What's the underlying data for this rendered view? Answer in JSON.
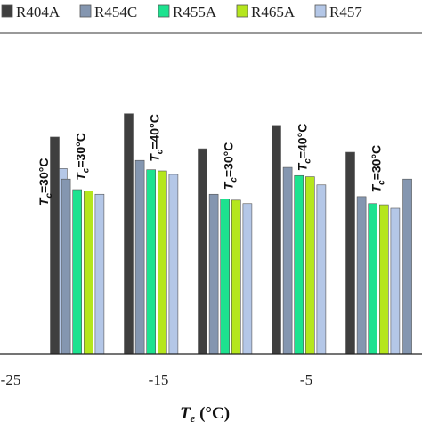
{
  "chart_data": {
    "type": "bar",
    "title": "",
    "xlabel_main": "T",
    "xlabel_sub": "e",
    "xlabel_unit": " (°C)",
    "ylabel": "",
    "ylim": [
      0,
      1.25
    ],
    "grid": false,
    "legend_position": "top",
    "series": [
      {
        "name": "R404A",
        "color": "#3f3f3f"
      },
      {
        "name": "R454C",
        "color": "#8496b0"
      },
      {
        "name": "R455A",
        "color": "#1de28f"
      },
      {
        "name": "R465A",
        "color": "#b5e61d"
      },
      {
        "name": "R457",
        "color": "#b4c7e7"
      }
    ],
    "x_ticks": [
      "-25",
      "-15",
      "-5"
    ],
    "groups": [
      {
        "x_position": -23.0,
        "annotation": "=30°C",
        "annotation_italic": "T",
        "annotation_sub": "c",
        "values": [
          null,
          null,
          null,
          null,
          0.795
        ]
      },
      {
        "x_position": -20.5,
        "annotation": "=30°C",
        "annotation_italic": "T",
        "annotation_sub": "c",
        "values": [
          0.93,
          0.75,
          0.705,
          0.7,
          0.685
        ]
      },
      {
        "x_position": -15.5,
        "annotation": "=40°C",
        "annotation_italic": "T",
        "annotation_sub": "c",
        "values": [
          1.03,
          0.83,
          0.79,
          0.785,
          0.77
        ]
      },
      {
        "x_position": -10.5,
        "annotation": "=30°C",
        "annotation_italic": "T",
        "annotation_sub": "c",
        "values": [
          0.88,
          0.685,
          0.665,
          0.66,
          0.645
        ]
      },
      {
        "x_position": -5.5,
        "annotation": "=40°C",
        "annotation_italic": "T",
        "annotation_sub": "c",
        "values": [
          0.98,
          0.8,
          0.765,
          0.76,
          0.725
        ]
      },
      {
        "x_position": -0.5,
        "annotation": "=30°C",
        "annotation_italic": "T",
        "annotation_sub": "c",
        "values": [
          0.865,
          0.675,
          0.645,
          0.64,
          0.625
        ]
      },
      {
        "x_position": 2.6,
        "annotation": "",
        "annotation_italic": "",
        "annotation_sub": "",
        "values": [
          null,
          0.75,
          null,
          null,
          null
        ]
      }
    ]
  }
}
